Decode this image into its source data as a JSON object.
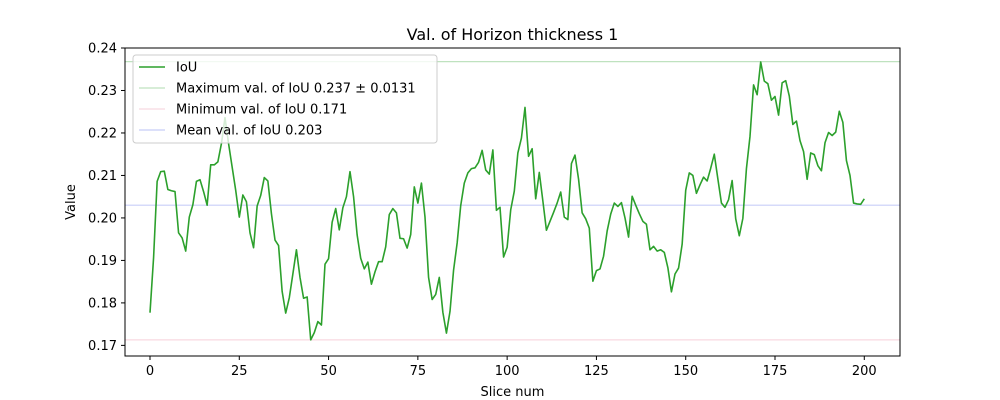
{
  "chart_data": {
    "type": "line",
    "title": "Val. of Horizon thickness 1",
    "xlabel": "Slice num",
    "ylabel": "Value",
    "xlim": [
      -7,
      210
    ],
    "ylim": [
      0.1675,
      0.24
    ],
    "xticks": [
      0,
      25,
      50,
      75,
      100,
      125,
      150,
      175,
      200
    ],
    "yticks": [
      0.17,
      0.18,
      0.19,
      0.2,
      0.21,
      0.22,
      0.23,
      0.24
    ],
    "xtick_labels": [
      "0",
      "25",
      "50",
      "75",
      "100",
      "125",
      "150",
      "175",
      "200"
    ],
    "ytick_labels": [
      "0.17",
      "0.18",
      "0.19",
      "0.20",
      "0.21",
      "0.22",
      "0.23",
      "0.24"
    ],
    "grid": false,
    "legend_position": "top-left",
    "series": [
      {
        "name": "IoU",
        "color": "#2ca02c",
        "x_start": 0,
        "x_step": 1,
        "values": [
          0.1777,
          0.1906,
          0.2086,
          0.2109,
          0.211,
          0.2067,
          0.2064,
          0.2062,
          0.1965,
          0.1953,
          0.1922,
          0.2002,
          0.2031,
          0.2086,
          0.209,
          0.2062,
          0.203,
          0.2125,
          0.2125,
          0.2132,
          0.2175,
          0.2236,
          0.2175,
          0.212,
          0.2065,
          0.2002,
          0.2054,
          0.2038,
          0.1965,
          0.193,
          0.2028,
          0.2053,
          0.2095,
          0.2087,
          0.201,
          0.1948,
          0.1935,
          0.1827,
          0.1776,
          0.1812,
          0.1868,
          0.1925,
          0.186,
          0.1811,
          0.1814,
          0.1713,
          0.173,
          0.1756,
          0.1748,
          0.1891,
          0.1904,
          0.199,
          0.2022,
          0.1972,
          0.2024,
          0.205,
          0.2109,
          0.205,
          0.196,
          0.1905,
          0.188,
          0.1896,
          0.1844,
          0.1873,
          0.1897,
          0.1897,
          0.1932,
          0.2008,
          0.2022,
          0.2012,
          0.1952,
          0.1951,
          0.1929,
          0.1961,
          0.2073,
          0.2035,
          0.2082,
          0.2002,
          0.186,
          0.1808,
          0.182,
          0.186,
          0.1778,
          0.1729,
          0.178,
          0.1877,
          0.1941,
          0.2029,
          0.2082,
          0.2106,
          0.2116,
          0.2118,
          0.2131,
          0.2159,
          0.2113,
          0.2103,
          0.216,
          0.2018,
          0.2025,
          0.1908,
          0.1931,
          0.2019,
          0.2063,
          0.2153,
          0.2188,
          0.226,
          0.2145,
          0.2163,
          0.2045,
          0.2107,
          0.204,
          0.1971,
          0.1992,
          0.2013,
          0.2035,
          0.2061,
          0.2002,
          0.1996,
          0.2128,
          0.2148,
          0.2091,
          0.2012,
          0.1998,
          0.1976,
          0.1851,
          0.1876,
          0.188,
          0.191,
          0.1969,
          0.2009,
          0.2035,
          0.2027,
          0.2036,
          0.2,
          0.1955,
          0.2051,
          0.203,
          0.201,
          0.1992,
          0.1985,
          0.1925,
          0.1933,
          0.1922,
          0.1925,
          0.1919,
          0.1883,
          0.1826,
          0.1868,
          0.1882,
          0.1938,
          0.2065,
          0.2106,
          0.21,
          0.2058,
          0.2078,
          0.2096,
          0.2087,
          0.2117,
          0.215,
          0.2092,
          0.2035,
          0.2025,
          0.2043,
          0.2088,
          0.1998,
          0.1958,
          0.1999,
          0.2116,
          0.2192,
          0.2313,
          0.229,
          0.2367,
          0.2322,
          0.2316,
          0.2277,
          0.2286,
          0.2242,
          0.2318,
          0.2323,
          0.2287,
          0.222,
          0.2228,
          0.2182,
          0.2156,
          0.2091,
          0.2153,
          0.2149,
          0.2123,
          0.2111,
          0.2177,
          0.2201,
          0.2194,
          0.2202,
          0.2251,
          0.2225,
          0.2135,
          0.21,
          0.2035,
          0.2033,
          0.2032,
          0.2045
        ]
      }
    ],
    "reference_lines": [
      {
        "name": "Maximum val. of IoU 0.237 ± 0.0131",
        "value": 0.2368,
        "color": "#2ca02c"
      },
      {
        "name": "Minimum val. of IoU 0.171",
        "value": 0.1713,
        "color": "#e8829a"
      },
      {
        "name": "Mean val. of IoU 0.203",
        "value": 0.203,
        "color": "#4a5ee8"
      }
    ]
  }
}
